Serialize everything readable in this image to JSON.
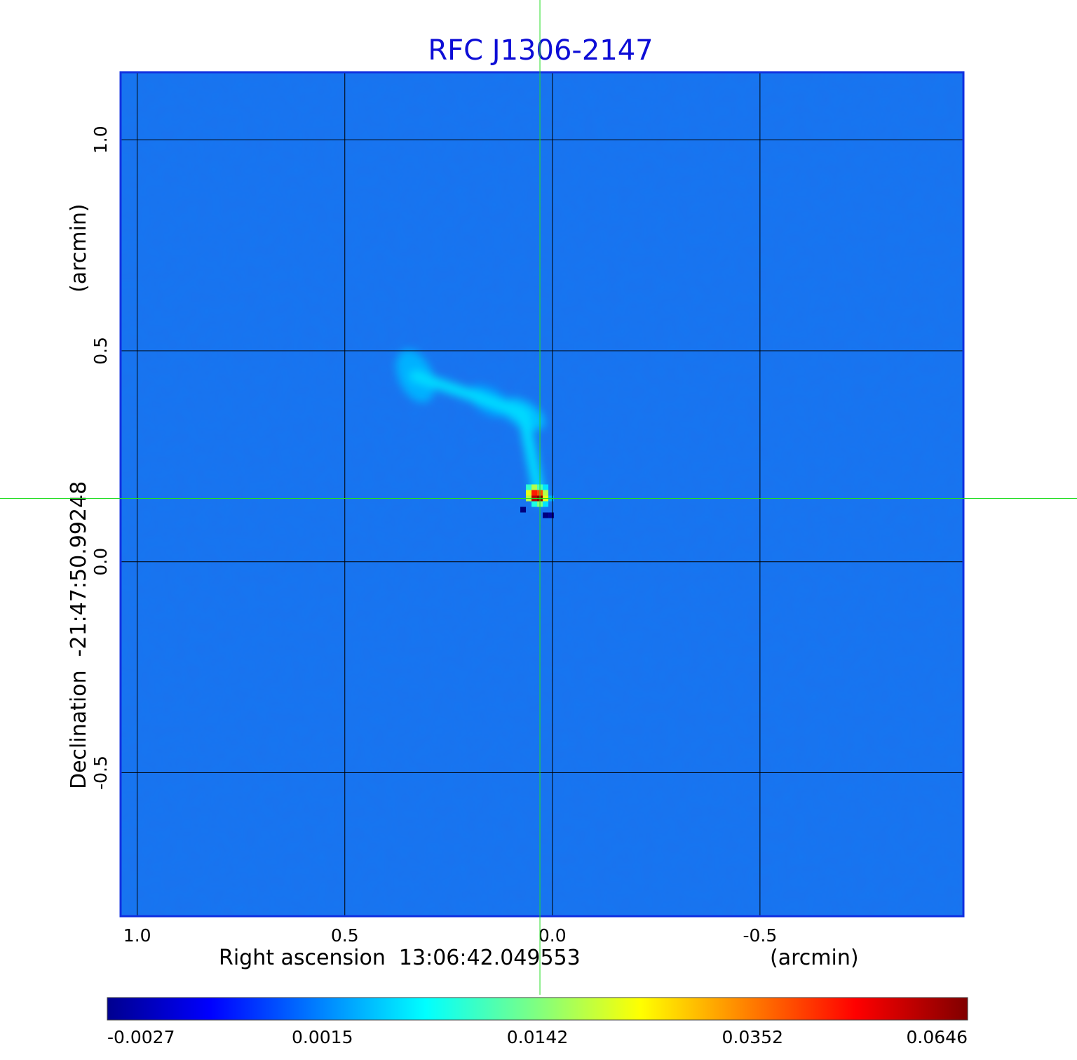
{
  "chart_data": {
    "type": "heatmap",
    "title": "RFC J1306-2147",
    "colormap": "jet",
    "grid": true,
    "x_axis": {
      "label_left": "Right ascension  13:06:42.049553",
      "label_right": "(arcmin)",
      "range": [
        1.04,
        -0.99
      ],
      "ticks": [
        {
          "value": 1.0,
          "label": "1.0"
        },
        {
          "value": 0.5,
          "label": "0.5"
        },
        {
          "value": 0.0,
          "label": "0.0"
        },
        {
          "value": -0.5,
          "label": "-0.5"
        }
      ]
    },
    "y_axis": {
      "label_left": "Declination  -21:47:50.99248",
      "label_right": "(arcmin)",
      "range": [
        -0.84,
        1.16
      ],
      "ticks": [
        {
          "value": 1.0,
          "label": "1.0"
        },
        {
          "value": 0.5,
          "label": "0.5"
        },
        {
          "value": 0.0,
          "label": "0.0"
        },
        {
          "value": -0.5,
          "label": "-0.5"
        }
      ]
    },
    "crosshair": {
      "x": 0.03,
      "y": 0.15,
      "color": "#22dd22"
    },
    "colorbar": {
      "ticks": [
        {
          "value": -0.0027,
          "label": "-0.0027"
        },
        {
          "value": 0.0015,
          "label": "0.0015"
        },
        {
          "value": 0.0142,
          "label": "0.0142"
        },
        {
          "value": 0.0352,
          "label": "0.0352"
        },
        {
          "value": 0.0646,
          "label": "0.0646"
        }
      ]
    },
    "features": [
      {
        "name": "core",
        "x": 0.03,
        "y": 0.15,
        "peak": 0.0646
      },
      {
        "name": "jet-knot-1",
        "x": 0.07,
        "y": 0.35,
        "peak": 0.01
      },
      {
        "name": "jet-knot-2",
        "x": 0.15,
        "y": 0.38,
        "peak": 0.008
      },
      {
        "name": "lobe",
        "x": 0.33,
        "y": 0.44,
        "peak": 0.009
      }
    ]
  }
}
